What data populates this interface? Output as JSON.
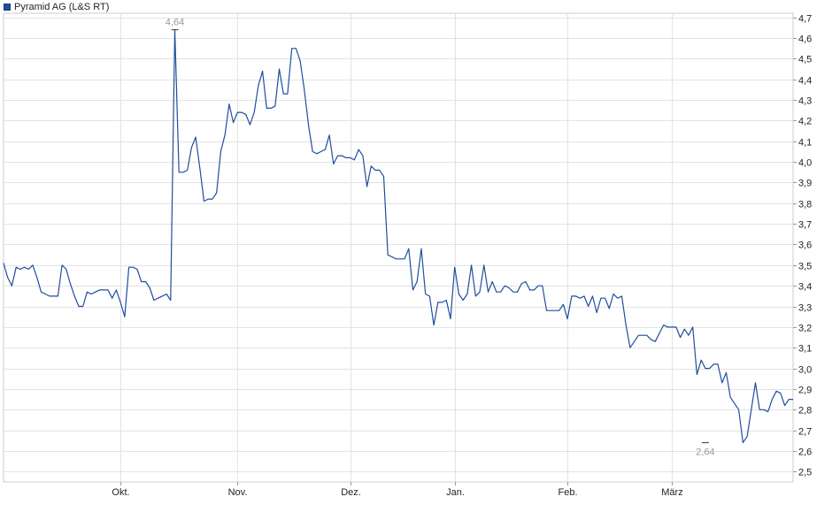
{
  "legend": {
    "label": "Pyramid AG (L&S RT)",
    "color": "#1f4e9c"
  },
  "chart_data": {
    "type": "line",
    "title": "",
    "xlabel": "",
    "ylabel": "",
    "ylim": [
      2.45,
      4.72
    ],
    "yticks": [
      2.5,
      2.6,
      2.7,
      2.8,
      2.9,
      3.0,
      3.1,
      3.2,
      3.3,
      3.4,
      3.5,
      3.6,
      3.7,
      3.8,
      3.9,
      4.0,
      4.1,
      4.2,
      4.3,
      4.4,
      4.5,
      4.6,
      4.7
    ],
    "ytick_labels": [
      "2,5",
      "2,6",
      "2,7",
      "2,8",
      "2,9",
      "3,0",
      "3,1",
      "3,2",
      "3,3",
      "3,4",
      "3,5",
      "3,6",
      "3,7",
      "3,8",
      "3,9",
      "4,0",
      "4,1",
      "4,2",
      "4,3",
      "4,4",
      "4,5",
      "4,6",
      "4,7"
    ],
    "xticks": [
      {
        "label": "Okt.",
        "index": 28
      },
      {
        "label": "Nov.",
        "index": 56
      },
      {
        "label": "Dez.",
        "index": 83
      },
      {
        "label": "Jan.",
        "index": 108
      },
      {
        "label": "Feb.",
        "index": 135
      },
      {
        "label": "März",
        "index": 160
      }
    ],
    "max_label": {
      "text": "4,64",
      "index": 41,
      "value": 4.64
    },
    "min_label": {
      "text": "2,64",
      "index": 168,
      "value": 2.64
    },
    "grid": true,
    "line_color": "#1f4e9c",
    "series": [
      {
        "name": "Pyramid AG (L&S RT)",
        "values": [
          3.51,
          3.44,
          3.4,
          3.49,
          3.48,
          3.49,
          3.48,
          3.5,
          3.44,
          3.37,
          3.36,
          3.35,
          3.35,
          3.35,
          3.5,
          3.48,
          3.41,
          3.35,
          3.3,
          3.3,
          3.37,
          3.36,
          3.37,
          3.38,
          3.38,
          3.38,
          3.34,
          3.38,
          3.32,
          3.25,
          3.49,
          3.49,
          3.48,
          3.42,
          3.42,
          3.39,
          3.33,
          3.34,
          3.35,
          3.36,
          3.33,
          4.64,
          3.95,
          3.95,
          3.96,
          4.07,
          4.12,
          3.97,
          3.81,
          3.82,
          3.82,
          3.85,
          4.05,
          4.13,
          4.28,
          4.19,
          4.24,
          4.24,
          4.23,
          4.18,
          4.24,
          4.37,
          4.44,
          4.26,
          4.26,
          4.27,
          4.45,
          4.33,
          4.33,
          4.55,
          4.55,
          4.49,
          4.35,
          4.18,
          4.05,
          4.04,
          4.05,
          4.06,
          4.13,
          3.99,
          4.03,
          4.03,
          4.02,
          4.02,
          4.01,
          4.06,
          4.03,
          3.88,
          3.98,
          3.96,
          3.96,
          3.93,
          3.55,
          3.54,
          3.53,
          3.53,
          3.53,
          3.58,
          3.38,
          3.42,
          3.58,
          3.36,
          3.35,
          3.21,
          3.32,
          3.32,
          3.33,
          3.24,
          3.49,
          3.36,
          3.33,
          3.36,
          3.5,
          3.35,
          3.37,
          3.5,
          3.37,
          3.42,
          3.37,
          3.37,
          3.4,
          3.39,
          3.37,
          3.37,
          3.41,
          3.42,
          3.38,
          3.38,
          3.4,
          3.4,
          3.28,
          3.28,
          3.28,
          3.28,
          3.31,
          3.24,
          3.35,
          3.35,
          3.34,
          3.35,
          3.3,
          3.35,
          3.27,
          3.34,
          3.34,
          3.29,
          3.36,
          3.34,
          3.35,
          3.21,
          3.1,
          3.13,
          3.16,
          3.16,
          3.16,
          3.14,
          3.13,
          3.17,
          3.21,
          3.2,
          3.2,
          3.2,
          3.15,
          3.19,
          3.16,
          3.2,
          2.97,
          3.04,
          3.0,
          3.0,
          3.02,
          3.02,
          2.93,
          2.98,
          2.86,
          2.83,
          2.8,
          2.64,
          2.67,
          2.8,
          2.93,
          2.8,
          2.8,
          2.79,
          2.85,
          2.89,
          2.88,
          2.82,
          2.85,
          2.85
        ]
      }
    ]
  }
}
